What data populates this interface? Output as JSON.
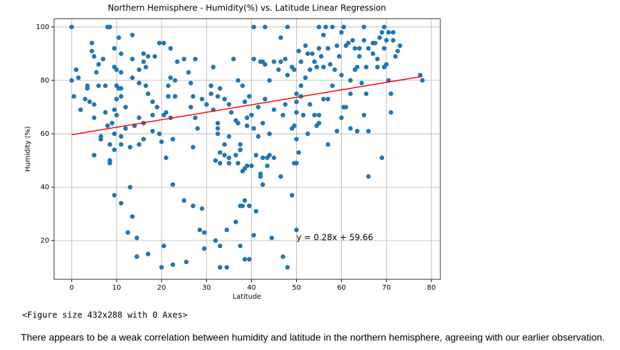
{
  "chart_data": {
    "type": "scatter",
    "title": "Northern Hemisphere - Humidity(%) vs. Latitude Linear Regression",
    "x_label": "Latitude",
    "y_label": "Humidity (%)",
    "color": "#1f77b4",
    "x": [
      0,
      0,
      0.5,
      1,
      1.5,
      2,
      3,
      3.5,
      3.5,
      4,
      4.5,
      4.5,
      5,
      5,
      5,
      5,
      5.5,
      6,
      6,
      6.5,
      6.5,
      7,
      7.5,
      7.5,
      8,
      8,
      8.5,
      8.5,
      8.5,
      8.5,
      9,
      9.5,
      9.5,
      9.5,
      9.5,
      9.5,
      9.5,
      10,
      10,
      10,
      10,
      10.5,
      10.5,
      11,
      11,
      11,
      11,
      11,
      11,
      11,
      12,
      12,
      12.5,
      13,
      13,
      13.5,
      13.5,
      13.5,
      13.5,
      14,
      14.5,
      14.5,
      15,
      15,
      15,
      15,
      16,
      16,
      16,
      16,
      16.5,
      16.5,
      17,
      17,
      17,
      18,
      18,
      18,
      18.5,
      19,
      19.5,
      19.5,
      20,
      20,
      20.5,
      20.5,
      20.5,
      21,
      21,
      21.5,
      21.5,
      22,
      22,
      22,
      22.5,
      22.5,
      22.5,
      23,
      23,
      23.5,
      25,
      25,
      25.5,
      26,
      26.5,
      26.5,
      27,
      27,
      27,
      27.5,
      27.5,
      28,
      28.5,
      29,
      29,
      29.5,
      29.5,
      30,
      31,
      31,
      31.5,
      31.5,
      32,
      32,
      32.5,
      32.5,
      32.5,
      32.5,
      33,
      33,
      33,
      33,
      33,
      34,
      34,
      34,
      34.5,
      34.5,
      35,
      35,
      35,
      35,
      35.5,
      36,
      36.5,
      36.5,
      36.5,
      37,
      37,
      37,
      37.5,
      37.5,
      37.5,
      37.5,
      38,
      38,
      38,
      38.5,
      38.5,
      38.5,
      38.5,
      39,
      39,
      39,
      39.5,
      39.5,
      39.5,
      40,
      40,
      40.5,
      40.5,
      40.5,
      40.5,
      41,
      41,
      41.5,
      41.5,
      42,
      42,
      42,
      42.5,
      42.5,
      42.5,
      42.5,
      43,
      43,
      43,
      43.5,
      43.5,
      44,
      44,
      44,
      44.5,
      45,
      45,
      45,
      46,
      46.5,
      46.5,
      46.5,
      47,
      47,
      47.5,
      47.5,
      48,
      48,
      48,
      49,
      49,
      49,
      49.5,
      49.5,
      49.5,
      50,
      50,
      50,
      50,
      50,
      50,
      50.5,
      50.5,
      51,
      51,
      51,
      51.5,
      52,
      52,
      52.5,
      52.5,
      53,
      53,
      53.5,
      54,
      54,
      54.5,
      54.5,
      55,
      55,
      55,
      55,
      55.5,
      56,
      56,
      56,
      56.5,
      57,
      57,
      57,
      57.5,
      58,
      58,
      58.5,
      59,
      59,
      59.5,
      60,
      60,
      60,
      60.5,
      60.5,
      61,
      61,
      61.5,
      62,
      62,
      62,
      62.5,
      63,
      63,
      63.5,
      63.5,
      64,
      64,
      64.5,
      65,
      65,
      65,
      65.5,
      65.5,
      66,
      66,
      66,
      67,
      67,
      67.5,
      68,
      68,
      68.5,
      69,
      69,
      69.5,
      69.5,
      69.5,
      70,
      70,
      70.5,
      70.5,
      71,
      71,
      71.5,
      71.5,
      72,
      72.5,
      73,
      77.5,
      78
    ],
    "values": [
      100,
      80,
      74,
      84,
      81,
      69,
      73,
      78,
      77,
      72,
      94,
      91,
      89,
      71,
      66,
      52,
      83,
      86,
      78,
      59,
      58,
      88,
      78,
      68,
      100,
      63,
      100,
      56,
      50,
      49,
      64,
      92,
      85,
      69,
      60,
      54,
      37,
      84,
      78,
      73,
      67,
      96,
      77,
      90,
      83,
      77,
      74,
      59,
      56,
      34,
      70,
      62,
      23,
      55,
      40,
      97,
      88,
      81,
      29,
      63,
      21,
      14,
      84,
      79,
      66,
      56,
      90,
      87,
      64,
      58,
      85,
      78,
      89,
      75,
      15,
      72,
      67,
      61,
      89,
      70,
      94,
      60,
      57,
      10,
      94,
      67,
      18,
      68,
      51,
      78,
      74,
      92,
      81,
      66,
      58,
      41,
      11,
      80,
      74,
      87,
      88,
      35,
      12,
      83,
      79,
      70,
      74,
      55,
      33,
      88,
      66,
      62,
      24,
      73,
      32,
      23,
      17,
      71,
      78,
      75,
      69,
      85,
      50,
      20,
      74,
      64,
      62,
      60,
      77,
      53,
      49,
      18,
      10,
      73,
      56,
      52,
      24,
      10,
      71,
      59,
      51,
      49,
      68,
      88,
      65,
      52,
      27,
      80,
      64,
      49,
      56,
      54,
      33,
      18,
      78,
      46,
      33,
      72,
      47,
      35,
      13,
      66,
      63,
      48,
      74,
      33,
      13,
      67,
      48,
      100,
      88,
      62,
      22,
      52,
      31,
      70,
      59,
      87,
      45,
      44,
      87,
      64,
      51,
      41,
      100,
      86,
      73,
      51,
      48,
      80,
      60,
      52,
      21,
      87,
      69,
      51,
      84,
      96,
      87,
      44,
      67,
      14,
      88,
      71,
      100,
      82,
      10,
      85,
      62,
      37,
      84,
      63,
      49,
      75,
      72,
      68,
      58,
      49,
      24,
      91,
      53,
      87,
      78,
      74,
      67,
      93,
      81,
      90,
      60,
      84,
      71,
      90,
      87,
      67,
      85,
      63,
      100,
      92,
      64,
      67,
      89,
      85,
      73,
      97,
      100,
      92,
      73,
      56,
      86,
      78,
      100,
      84,
      93,
      61,
      89,
      98,
      82,
      66,
      100,
      70,
      93,
      70,
      94,
      80,
      75,
      62,
      95,
      84,
      92,
      85,
      61,
      89,
      92,
      79,
      100,
      95,
      67,
      85,
      75,
      61,
      44,
      92,
      94,
      90,
      94,
      88,
      85,
      96,
      98,
      51,
      100,
      92,
      85,
      95,
      86,
      98,
      80,
      75,
      68,
      95,
      98,
      89,
      91,
      93,
      82,
      80
    ],
    "fit": {
      "x": [
        0,
        78
      ],
      "values": [
        59.66,
        81.5
      ],
      "color": "#ff0000"
    },
    "annotation": {
      "text": "y = 0.28x + 59.66",
      "x": 50,
      "y": 20,
      "color": "#ff0000"
    },
    "xlim": [
      -3.9,
      82
    ],
    "ylim": [
      5.5,
      103.1
    ],
    "xticks": [
      0,
      10,
      20,
      30,
      40,
      50,
      60,
      70,
      80
    ],
    "yticks": [
      20,
      40,
      60,
      80,
      100
    ],
    "grid": true
  },
  "figure_output": "<Figure size 432x288 with 0 Axes>",
  "observation": "There appears to be a weak correlation between humidity and latitude in the northern hemisphere, agreeing with our earlier observation."
}
